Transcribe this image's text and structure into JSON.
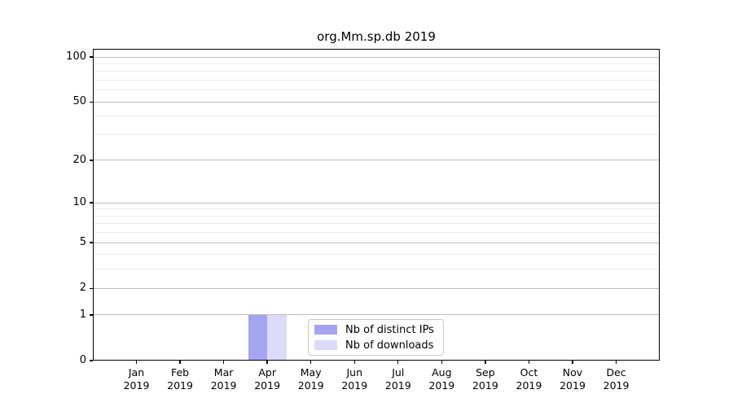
{
  "chart_data": {
    "type": "bar",
    "title": "org.Mm.sp.db 2019",
    "categories": [
      "Jan",
      "Feb",
      "Mar",
      "Apr",
      "May",
      "Jun",
      "Jul",
      "Aug",
      "Sep",
      "Oct",
      "Nov",
      "Dec"
    ],
    "category_year": "2019",
    "series": [
      {
        "name": "Nb of distinct IPs",
        "color": "#a4a4f0",
        "values": [
          0,
          0,
          0,
          1,
          0,
          0,
          0,
          0,
          0,
          0,
          0,
          0
        ]
      },
      {
        "name": "Nb of downloads",
        "color": "#dbdbf9",
        "values": [
          0,
          0,
          0,
          1,
          0,
          0,
          0,
          0,
          0,
          0,
          0,
          0
        ]
      }
    ],
    "xlabel": "",
    "ylabel": "",
    "yscale": "log1p",
    "ylim": [
      0,
      100
    ],
    "yticks": [
      0,
      1,
      2,
      5,
      10,
      20,
      50,
      100
    ],
    "minor_yticks": [
      3,
      4,
      6,
      7,
      8,
      9,
      30,
      40,
      60,
      70,
      80,
      90
    ],
    "grid": "horizontal major and minor gridlines",
    "legend_position": "inside bottom, left of center",
    "colors": {
      "background": "#ffffff",
      "axis_frame": "#000000",
      "major_gridline": "#bdbdbd",
      "minor_gridline": "#ebebeb",
      "text": "#000000"
    }
  }
}
